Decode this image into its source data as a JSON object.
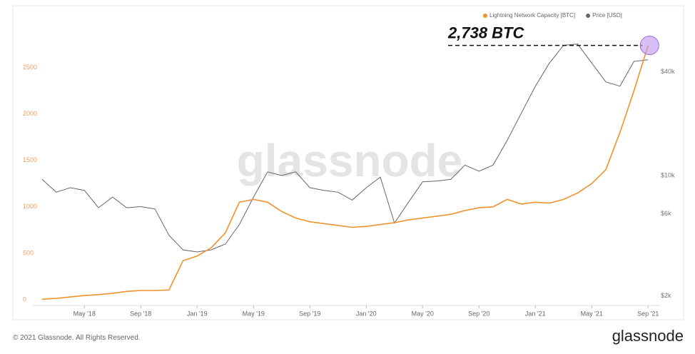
{
  "chart_data": {
    "type": "line",
    "legend": "top-right",
    "x": [
      "2018-02",
      "2018-03",
      "2018-04",
      "2018-05",
      "2018-06",
      "2018-07",
      "2018-08",
      "2018-09",
      "2018-10",
      "2018-11",
      "2018-12",
      "2019-01",
      "2019-02",
      "2019-03",
      "2019-04",
      "2019-05",
      "2019-06",
      "2019-07",
      "2019-08",
      "2019-09",
      "2019-10",
      "2019-11",
      "2019-12",
      "2020-01",
      "2020-02",
      "2020-03",
      "2020-04",
      "2020-05",
      "2020-06",
      "2020-07",
      "2020-08",
      "2020-09",
      "2020-10",
      "2020-11",
      "2020-12",
      "2021-01",
      "2021-02",
      "2021-03",
      "2021-04",
      "2021-05",
      "2021-06",
      "2021-07",
      "2021-08",
      "2021-09"
    ],
    "series": [
      {
        "name": "Lightning Network Capacity [BTC]",
        "color": "#f0922b",
        "values": [
          5,
          15,
          30,
          45,
          55,
          70,
          90,
          100,
          100,
          105,
          420,
          470,
          560,
          720,
          1050,
          1080,
          1050,
          950,
          880,
          840,
          820,
          800,
          780,
          790,
          810,
          830,
          860,
          880,
          900,
          920,
          960,
          990,
          1000,
          1080,
          1030,
          1050,
          1040,
          1080,
          1150,
          1250,
          1400,
          1800,
          2250,
          2738
        ]
      },
      {
        "name": "Price [USD]",
        "color": "#666666",
        "axis": "y2",
        "values": [
          9500,
          8000,
          8500,
          8200,
          6500,
          7500,
          6500,
          6600,
          6400,
          4500,
          3700,
          3600,
          3700,
          4000,
          5200,
          7500,
          10500,
          10000,
          10500,
          8500,
          8200,
          8000,
          7200,
          8500,
          9800,
          5300,
          7000,
          9200,
          9300,
          9500,
          11500,
          10600,
          11500,
          16000,
          23000,
          33000,
          45000,
          57000,
          58000,
          45000,
          35000,
          33000,
          46000,
          47000
        ]
      }
    ],
    "ylim": [
      0,
      3150
    ],
    "yticks": [
      0,
      500,
      1000,
      1500,
      2000,
      2500
    ],
    "y2lim": [
      1900,
      95000
    ],
    "y2scale": "log",
    "y2ticks": [
      {
        "value": 2000,
        "label": "$2k"
      },
      {
        "value": 6000,
        "label": "$6k"
      },
      {
        "value": 10000,
        "label": "$10k"
      },
      {
        "value": 40000,
        "label": "$40k"
      }
    ],
    "xticks": [
      {
        "value": "2018-05",
        "label": "May '18"
      },
      {
        "value": "2018-09",
        "label": "Sep '18"
      },
      {
        "value": "2019-01",
        "label": "Jan '19"
      },
      {
        "value": "2019-05",
        "label": "May '19"
      },
      {
        "value": "2019-09",
        "label": "Sep '19"
      },
      {
        "value": "2020-01",
        "label": "Jan '20"
      },
      {
        "value": "2020-05",
        "label": "May '20"
      },
      {
        "value": "2020-09",
        "label": "Sep '20"
      },
      {
        "value": "2021-01",
        "label": "Jan '21"
      },
      {
        "value": "2021-05",
        "label": "May '21"
      },
      {
        "value": "2021-09",
        "label": "Sep '21"
      }
    ],
    "annotation": {
      "text": "2,738 BTC",
      "value": 2738
    }
  },
  "watermark": "glassnode",
  "footer": {
    "copyright": "© 2021 Glassnode. All Rights Reserved.",
    "logo": "glassnode"
  }
}
